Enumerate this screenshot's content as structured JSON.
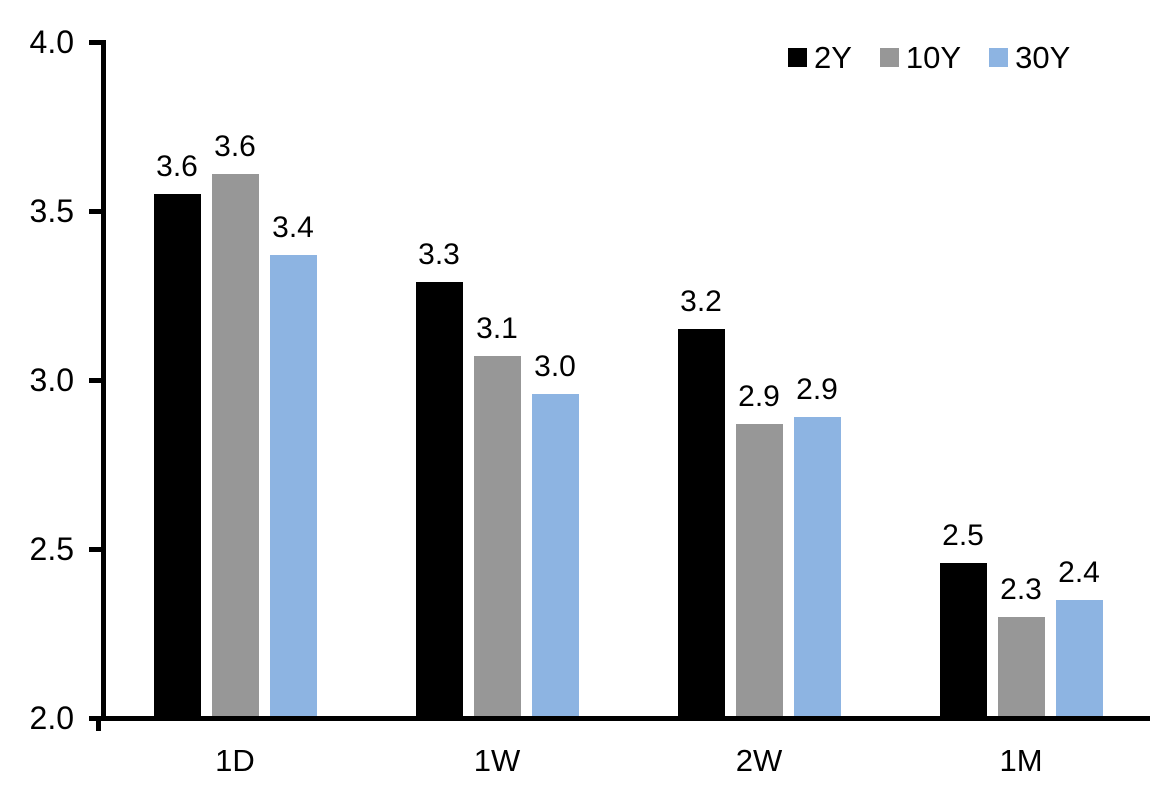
{
  "chart_data": {
    "type": "bar",
    "title": "",
    "categories": [
      "1D",
      "1W",
      "2W",
      "1M"
    ],
    "series": [
      {
        "name": "2Y",
        "color": "#000000",
        "values": [
          3.55,
          3.29,
          3.15,
          2.46
        ],
        "labels": [
          "3.6",
          "3.3",
          "3.2",
          "2.5"
        ]
      },
      {
        "name": "10Y",
        "color": "#979797",
        "values": [
          3.61,
          3.07,
          2.87,
          2.3
        ],
        "labels": [
          "3.6",
          "3.1",
          "2.9",
          "2.3"
        ]
      },
      {
        "name": "30Y",
        "color": "#8DB4E2",
        "values": [
          3.37,
          2.96,
          2.89,
          2.35
        ],
        "labels": [
          "3.4",
          "3.0",
          "2.9",
          "2.4"
        ]
      }
    ],
    "ylim": [
      2.0,
      4.0
    ],
    "yticks": [
      {
        "value": 4.0,
        "label": "4.0"
      },
      {
        "value": 3.5,
        "label": "3.5"
      },
      {
        "value": 3.0,
        "label": "3.0"
      },
      {
        "value": 2.5,
        "label": "2.5"
      },
      {
        "value": 2.0,
        "label": "2.0"
      }
    ],
    "xlabel": "",
    "ylabel": "",
    "grid": false,
    "legend_position": "top-right",
    "axis_color": "#000000"
  }
}
